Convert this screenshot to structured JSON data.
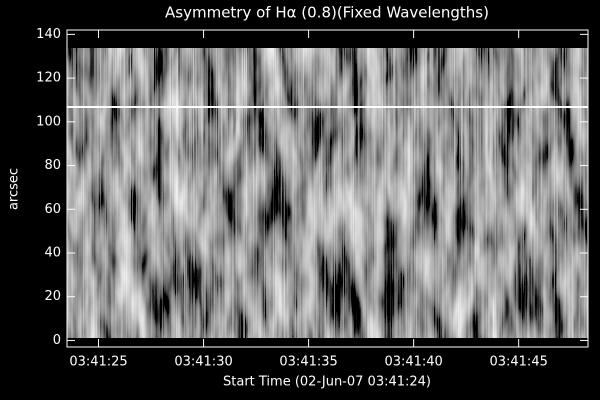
{
  "chart_data": {
    "type": "image",
    "title": "Asymmetry of Hα (0.8)(Fixed Wavelengths)",
    "x_label": "Start Time (02-Jun-07 03:41:24)",
    "y_label": "arcsec",
    "xlim": [
      23.5,
      48.3
    ],
    "xticks": [
      {
        "value": 25,
        "label": "03:41:25"
      },
      {
        "value": 30,
        "label": "03:41:30"
      },
      {
        "value": 35,
        "label": "03:41:35"
      },
      {
        "value": 40,
        "label": "03:41:40"
      },
      {
        "value": 45,
        "label": "03:41:45"
      }
    ],
    "ylim": [
      -3,
      142
    ],
    "yticks": [
      0,
      20,
      40,
      60,
      80,
      100,
      120,
      140
    ]
  }
}
